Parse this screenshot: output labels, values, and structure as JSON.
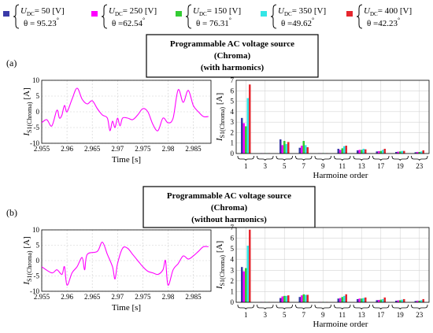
{
  "legend": [
    {
      "u_label": "DC",
      "u_value": "= 50",
      "u_unit": "[V]",
      "theta": "= 95.23",
      "theta_unit": "°",
      "color": "#3a3aa8"
    },
    {
      "u_label": "DC",
      "u_value": "= 250",
      "u_unit": "[V]",
      "theta": "=62.54",
      "theta_unit": "°",
      "color": "#ff00ff"
    },
    {
      "u_label": "DC",
      "u_value": "= 150",
      "u_unit": "[V]",
      "theta": "= 76.31",
      "theta_unit": "°",
      "color": "#33cc33"
    },
    {
      "u_label": "DC",
      "u_value": "= 350",
      "u_unit": "[V]",
      "theta": "=49.62",
      "theta_unit": "°",
      "color": "#33e6e6"
    },
    {
      "u_label": "DC",
      "u_value": "= 400",
      "u_unit": "[V]",
      "theta": "=42.23",
      "theta_unit": "°",
      "color": "#e6262e"
    }
  ],
  "panels": [
    {
      "label": "(a)",
      "header": [
        "Programmable AC voltage source",
        "(Chroma)",
        "(with harmonics)"
      ]
    },
    {
      "label": "(b)",
      "header": [
        "Programmable AC voltage source",
        "(Chroma)",
        "(without harmonics)"
      ]
    }
  ],
  "chart_data": [
    {
      "type": "line",
      "panel": "(a)",
      "xlabel": "Time [s]",
      "ylabel": "I",
      "ylabel_sub": "S1(Chroma)",
      "ylabel_unit": "[A]",
      "xlim": [
        2.955,
        2.9885
      ],
      "ylim": [
        -10,
        10
      ],
      "xticks": [
        "2.955",
        "2.96",
        "2.965",
        "2.97",
        "2.975",
        "2.98",
        "2.985"
      ],
      "xtick_values": [
        2.955,
        2.96,
        2.965,
        2.97,
        2.975,
        2.98,
        2.985
      ],
      "yticks": [
        "10",
        "5",
        "0",
        "-5",
        "-10"
      ],
      "ytick_values": [
        10,
        5,
        0,
        -5,
        -10
      ],
      "grid": true,
      "series": [
        {
          "color": "#ff00ff",
          "x": [
            2.955,
            2.956,
            2.957,
            2.958,
            2.9585,
            2.959,
            2.9595,
            2.96,
            2.961,
            2.962,
            2.963,
            2.964,
            2.965,
            2.966,
            2.967,
            2.968,
            2.9685,
            2.969,
            2.9695,
            2.97,
            2.9705,
            2.971,
            2.972,
            2.973,
            2.974,
            2.975,
            2.976,
            2.977,
            2.978,
            2.979,
            2.98,
            2.981,
            2.982,
            2.983,
            2.984,
            2.985,
            2.986,
            2.987,
            2.988
          ],
          "y": [
            -3.5,
            -2.5,
            -4.5,
            0.5,
            -2,
            -1,
            2,
            0,
            4,
            7.5,
            4,
            2.5,
            3.5,
            1,
            -1,
            -2,
            -6,
            -3,
            -5,
            -2,
            -4.5,
            -2,
            -2,
            -2.5,
            -1,
            1,
            0,
            -4,
            -6,
            -2,
            -3.5,
            -2,
            7,
            3,
            6.8,
            2,
            0,
            -1.5,
            -1.5
          ]
        }
      ]
    },
    {
      "type": "bar",
      "panel": "(a)",
      "xlabel": "Harmoine order",
      "ylabel": "I",
      "ylabel_sub": "S1(Chroma)",
      "ylabel_unit": "[A]",
      "ylim": [
        0,
        7
      ],
      "yticks": [
        "0",
        "1",
        "2",
        "3",
        "4",
        "5",
        "6",
        "7"
      ],
      "ytick_values": [
        0,
        1,
        2,
        3,
        4,
        5,
        6,
        7
      ],
      "categories": [
        "1",
        "3",
        "5",
        "7",
        "9",
        "11",
        "13",
        "17",
        "19",
        "23"
      ],
      "grid": true,
      "series": [
        {
          "color": "#3a3aa8",
          "values": [
            3.4,
            0.03,
            1.35,
            0.55,
            0.03,
            0.45,
            0.3,
            0.2,
            0.15,
            0.12
          ]
        },
        {
          "color": "#ff00ff",
          "values": [
            2.9,
            0.03,
            0.8,
            0.75,
            0.03,
            0.35,
            0.35,
            0.22,
            0.18,
            0.15
          ]
        },
        {
          "color": "#33cc33",
          "values": [
            2.6,
            0.03,
            1.2,
            1.2,
            0.03,
            0.5,
            0.35,
            0.25,
            0.2,
            0.15
          ]
        },
        {
          "color": "#33e6e6",
          "values": [
            5.3,
            0.03,
            0.9,
            0.8,
            0.03,
            0.7,
            0.45,
            0.35,
            0.25,
            0.2
          ]
        },
        {
          "color": "#e6262e",
          "values": [
            6.6,
            0.03,
            1.1,
            0.6,
            0.03,
            0.75,
            0.4,
            0.45,
            0.25,
            0.3
          ]
        }
      ]
    },
    {
      "type": "line",
      "panel": "(b)",
      "xlabel": "Time [s]",
      "ylabel": "I",
      "ylabel_sub": "S1(Chroma)",
      "ylabel_unit": "[A]",
      "xlim": [
        2.955,
        2.9885
      ],
      "ylim": [
        -10,
        10
      ],
      "xticks": [
        "2.955",
        "2.96",
        "2.965",
        "2.97",
        "2.975",
        "2.98",
        "2.985"
      ],
      "xtick_values": [
        2.955,
        2.96,
        2.965,
        2.97,
        2.975,
        2.98,
        2.985
      ],
      "yticks": [
        "10",
        "5",
        "0",
        "-5",
        "-10"
      ],
      "ytick_values": [
        10,
        5,
        0,
        -5,
        -10
      ],
      "grid": true,
      "series": [
        {
          "color": "#ff00ff",
          "x": [
            2.955,
            2.957,
            2.958,
            2.959,
            2.9595,
            2.96,
            2.961,
            2.962,
            2.963,
            2.9635,
            2.964,
            2.966,
            2.967,
            2.968,
            2.969,
            2.9695,
            2.97,
            2.971,
            2.972,
            2.973,
            2.974,
            2.975,
            2.976,
            2.977,
            2.978,
            2.979,
            2.9795,
            2.98,
            2.981,
            2.982,
            2.983,
            2.984,
            2.985,
            2.986,
            2.987,
            2.988
          ],
          "y": [
            -2,
            -4,
            -3,
            -4.5,
            -2,
            -8,
            -4,
            -2,
            1,
            -3,
            2,
            3,
            6,
            2,
            -2,
            -6,
            -1,
            4,
            4,
            2,
            0,
            -2,
            -3.5,
            -4,
            -4.5,
            -3,
            0,
            -8,
            -3,
            -1,
            1.5,
            0.5,
            1.5,
            3,
            4.5,
            4.5
          ]
        }
      ]
    },
    {
      "type": "bar",
      "panel": "(b)",
      "xlabel": "Harmoine order",
      "ylabel": "I",
      "ylabel_sub": "S1(Chroma)",
      "ylabel_unit": "[A]",
      "ylim": [
        0,
        7
      ],
      "yticks": [
        "0",
        "1",
        "2",
        "3",
        "4",
        "5",
        "6",
        "7"
      ],
      "ytick_values": [
        0,
        1,
        2,
        3,
        4,
        5,
        6,
        7
      ],
      "categories": [
        "1",
        "3",
        "5",
        "7",
        "9",
        "11",
        "13",
        "17",
        "19",
        "23"
      ],
      "grid": true,
      "series": [
        {
          "color": "#3a3aa8",
          "values": [
            3.3,
            0.03,
            0.4,
            0.5,
            0.03,
            0.35,
            0.3,
            0.2,
            0.15,
            0.12
          ]
        },
        {
          "color": "#ff00ff",
          "values": [
            2.9,
            0.03,
            0.55,
            0.65,
            0.03,
            0.4,
            0.35,
            0.22,
            0.18,
            0.15
          ]
        },
        {
          "color": "#33cc33",
          "values": [
            3.2,
            0.03,
            0.6,
            0.75,
            0.03,
            0.5,
            0.35,
            0.25,
            0.2,
            0.15
          ]
        },
        {
          "color": "#33e6e6",
          "values": [
            5.3,
            0.03,
            0.6,
            0.7,
            0.03,
            0.6,
            0.4,
            0.3,
            0.25,
            0.2
          ]
        },
        {
          "color": "#e6262e",
          "values": [
            6.8,
            0.03,
            0.65,
            0.7,
            0.03,
            0.75,
            0.45,
            0.45,
            0.3,
            0.3
          ]
        }
      ]
    }
  ]
}
